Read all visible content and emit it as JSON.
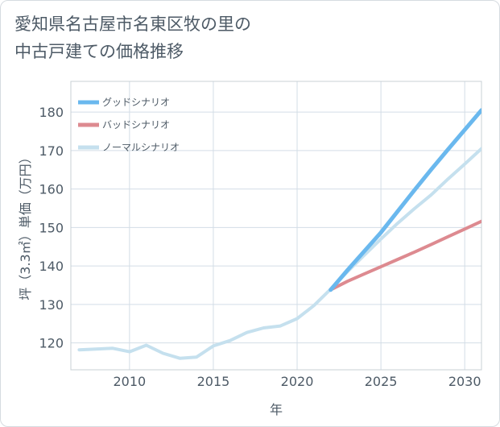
{
  "title": {
    "line1": "愛知県名古屋市名東区牧の里の",
    "line2": "中古戸建ての価格推移"
  },
  "chart_data": {
    "type": "line",
    "xlabel": "年",
    "ylabel": "坪（3.3㎡）単価（万円）",
    "xlim": [
      2006.5,
      2031
    ],
    "ylim": [
      113,
      188
    ],
    "x_ticks": [
      2010,
      2015,
      2020,
      2025,
      2030
    ],
    "y_ticks": [
      120,
      130,
      140,
      150,
      160,
      170,
      180
    ],
    "grid": true,
    "legend_position": "top-left",
    "series": [
      {
        "name": "ノーマルシナリオ",
        "color": "#c5e0ee",
        "x": [
          2007,
          2008,
          2009,
          2010,
          2011,
          2012,
          2013,
          2014,
          2015,
          2016,
          2017,
          2018,
          2019,
          2020,
          2021,
          2022,
          2023,
          2024,
          2025,
          2026,
          2027,
          2028,
          2029,
          2030,
          2031
        ],
        "values": [
          118.2,
          118.4,
          118.6,
          117.7,
          119.4,
          117.3,
          116.0,
          116.3,
          119.2,
          120.6,
          122.7,
          123.9,
          124.4,
          126.3,
          129.7,
          134.0,
          138.5,
          142.8,
          147.0,
          151.1,
          154.9,
          158.5,
          162.6,
          166.5,
          170.5
        ]
      },
      {
        "name": "バッドシナリオ",
        "color": "#dd8a90",
        "x": [
          2022,
          2023,
          2024,
          2025,
          2026,
          2027,
          2028,
          2029,
          2030,
          2031
        ],
        "values": [
          133.8,
          136.0,
          137.9,
          139.8,
          141.7,
          143.6,
          145.6,
          147.6,
          149.6,
          151.6
        ]
      },
      {
        "name": "グッドシナリオ",
        "color": "#6ab8ee",
        "x": [
          2022,
          2023,
          2024,
          2025,
          2026,
          2027,
          2028,
          2029,
          2030,
          2031
        ],
        "values": [
          133.8,
          138.9,
          143.8,
          148.7,
          154.2,
          159.7,
          165.1,
          170.3,
          175.4,
          180.5
        ]
      }
    ],
    "legend_order": [
      "グッドシナリオ",
      "バッドシナリオ",
      "ノーマルシナリオ"
    ]
  }
}
